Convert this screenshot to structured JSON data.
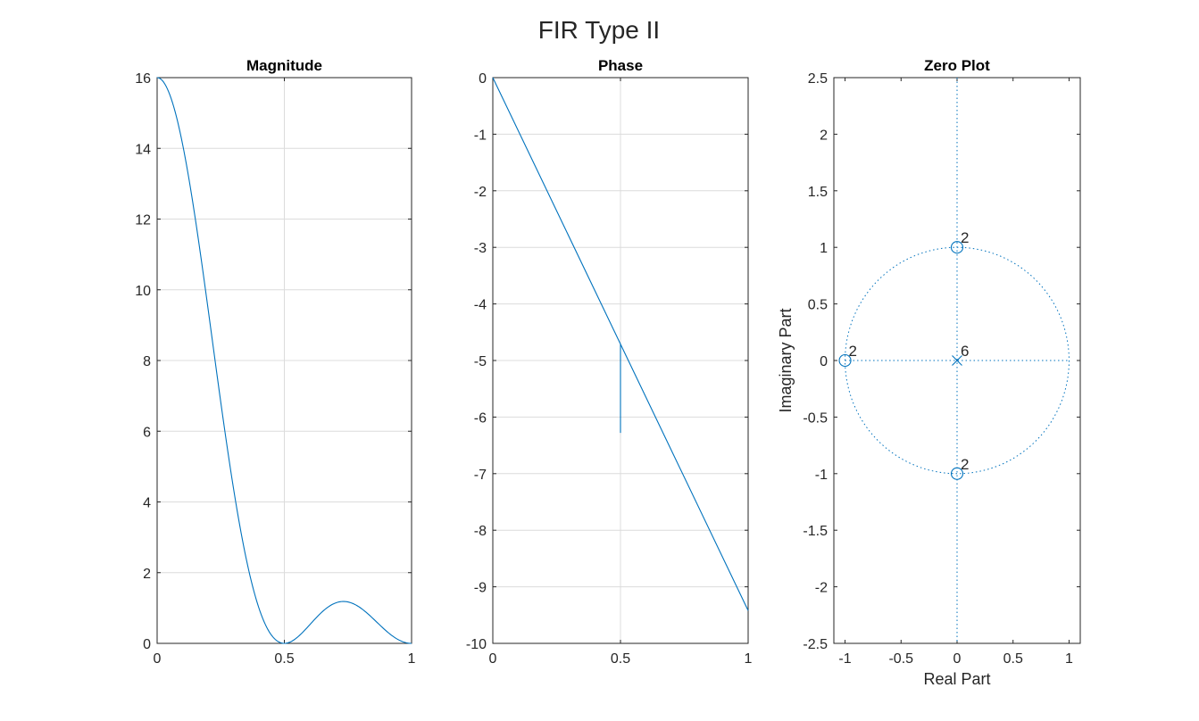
{
  "figure": {
    "title": "FIR Type II"
  },
  "colors": {
    "line": "#0072BD",
    "grid": "#dcdcdc",
    "axes": "#262626"
  },
  "chart_data": [
    {
      "type": "line",
      "title": "Magnitude",
      "xlabel": "",
      "ylabel": "",
      "xlim": [
        0,
        1
      ],
      "ylim": [
        0,
        16
      ],
      "xticks": [
        0,
        0.5,
        1
      ],
      "xtick_labels": [
        "0",
        "0.5",
        "1"
      ],
      "yticks": [
        0,
        2,
        4,
        6,
        8,
        10,
        12,
        14,
        16
      ],
      "ytick_labels": [
        "0",
        "2",
        "4",
        "6",
        "8",
        "10",
        "12",
        "14",
        "16"
      ],
      "grid": true,
      "series": [
        {
          "x": [
            0,
            0.05,
            0.1,
            0.15,
            0.2,
            0.25,
            0.3,
            0.35,
            0.4,
            0.45,
            0.5,
            0.55,
            0.6,
            0.65,
            0.7,
            0.75,
            0.8,
            0.85,
            0.9,
            0.95,
            1
          ],
          "y": [
            16,
            15.6,
            14.4,
            12.5,
            10.2,
            7.6,
            5.1,
            2.9,
            1.25,
            0.3,
            0,
            0.23,
            0.64,
            1.0,
            1.17,
            1.15,
            0.91,
            0.55,
            0.23,
            0.05,
            0
          ]
        }
      ]
    },
    {
      "type": "line",
      "title": "Phase",
      "xlabel": "",
      "ylabel": "",
      "xlim": [
        0,
        1
      ],
      "ylim": [
        -10,
        0
      ],
      "xticks": [
        0,
        0.5,
        1
      ],
      "xtick_labels": [
        "0",
        "0.5",
        "1"
      ],
      "yticks": [
        0,
        -1,
        -2,
        -3,
        -4,
        -5,
        -6,
        -7,
        -8,
        -9,
        -10
      ],
      "ytick_labels": [
        "0",
        "-1",
        "-2",
        "-3",
        "-4",
        "-5",
        "-6",
        "-7",
        "-8",
        "-9",
        "-10"
      ],
      "grid": true,
      "series": [
        {
          "x": [
            0,
            0.5,
            0.5,
            0.5,
            1
          ],
          "y": [
            0,
            -4.71,
            -6.28,
            -4.71,
            -9.42
          ]
        }
      ]
    },
    {
      "type": "scatter",
      "title": "Zero Plot",
      "xlabel": "Real Part",
      "ylabel": "Imaginary Part",
      "xlim": [
        -1.1,
        1.1
      ],
      "ylim": [
        -2.5,
        2.5
      ],
      "xticks": [
        -1,
        -0.5,
        0,
        0.5,
        1
      ],
      "xtick_labels": [
        "-1",
        "-0.5",
        "0",
        "0.5",
        "1"
      ],
      "yticks": [
        2.5,
        2,
        1.5,
        1,
        0.5,
        0,
        -0.5,
        -1,
        -1.5,
        -2,
        -2.5
      ],
      "ytick_labels": [
        "2.5",
        "2",
        "1.5",
        "1",
        "0.5",
        "0",
        "-0.5",
        "-1",
        "-1.5",
        "-2",
        "-2.5"
      ],
      "grid": false,
      "unit_circle": true,
      "zeros": [
        {
          "re": 0,
          "im": 1,
          "multiplicity": "2"
        },
        {
          "re": -1,
          "im": 0,
          "multiplicity": "2"
        },
        {
          "re": 0,
          "im": -1,
          "multiplicity": "2"
        }
      ],
      "poles": [
        {
          "re": 0,
          "im": 0,
          "multiplicity": "6"
        }
      ]
    }
  ]
}
